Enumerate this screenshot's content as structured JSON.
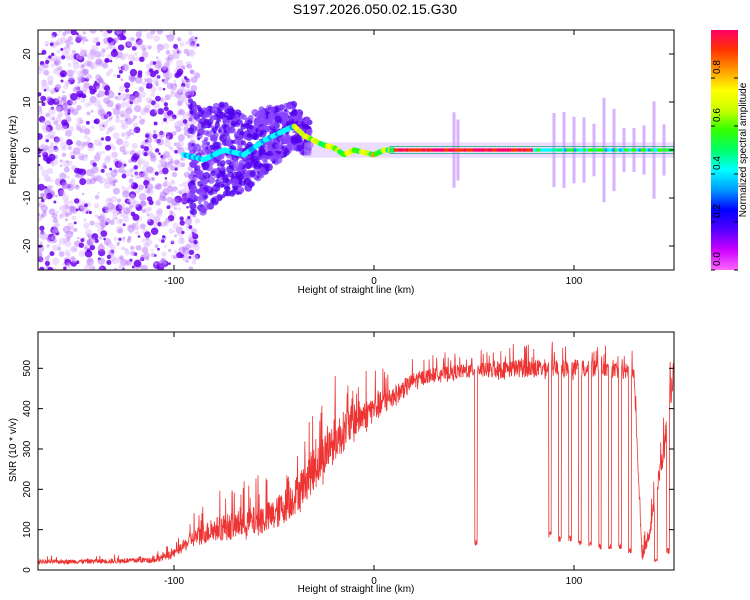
{
  "figure_title": "S197.2026.050.02.15.G30",
  "chart_data": [
    {
      "type": "heatmap",
      "title": "S197.2026.050.02.15.G30",
      "xlabel": "Height of straight line (km)",
      "ylabel": "Frequency (Hz)",
      "xlim": [
        -168,
        150
      ],
      "ylim": [
        -25,
        25
      ],
      "xticks": [
        -100,
        0,
        100
      ],
      "xtick_labels": [
        "-100",
        "0",
        "100"
      ],
      "yticks": [
        -20,
        -10,
        0,
        10,
        20
      ],
      "ytick_labels": [
        "-20",
        "-10",
        "0",
        "10",
        "20"
      ],
      "colorbar": {
        "label": "Normalized spectral amplitude",
        "range": [
          0,
          1
        ],
        "ticks": [
          0.0,
          0.2,
          0.4,
          0.6,
          0.8
        ],
        "tick_labels": [
          "0.0",
          "0.2",
          "0.4",
          "0.6",
          "0.8"
        ],
        "colors": [
          "#ff66ff",
          "#cc00ff",
          "#5500ff",
          "#0000ff",
          "#0099ff",
          "#00ffff",
          "#00ff66",
          "#33ff00",
          "#ccff00",
          "#ffff00",
          "#ff9900",
          "#ff3300",
          "#ff0066"
        ]
      },
      "ridge": {
        "x": [
          -95,
          -85,
          -75,
          -65,
          -55,
          -45,
          -40,
          -35,
          -30,
          -25,
          -20,
          -15,
          -10,
          -5,
          0,
          5,
          10,
          20,
          40,
          60,
          80,
          100,
          120,
          140,
          150
        ],
        "freq": [
          -1,
          -2,
          0,
          -1,
          2,
          4,
          5,
          3,
          2,
          1,
          0.5,
          -1,
          0,
          -0.5,
          -1,
          0,
          0,
          0,
          0,
          0,
          0,
          0,
          0,
          0,
          0
        ]
      },
      "noise_region": {
        "x_start": -168,
        "x_end": -88
      },
      "vertical_streaks_x": [
        40,
        42,
        90,
        95,
        100,
        105,
        110,
        115,
        120,
        125,
        130,
        135,
        140,
        145
      ]
    },
    {
      "type": "line",
      "xlabel": "Height of straight line (km)",
      "ylabel": "SNR (10 * v/v)",
      "xlim": [
        -168,
        150
      ],
      "ylim": [
        0,
        590
      ],
      "xticks": [
        -100,
        0,
        100
      ],
      "xtick_labels": [
        "-100",
        "0",
        "100"
      ],
      "yticks": [
        0,
        100,
        200,
        300,
        400,
        500
      ],
      "ytick_labels": [
        "0",
        "100",
        "200",
        "300",
        "400",
        "500"
      ],
      "series": [
        {
          "name": "SNR",
          "color": "#ee3333",
          "envelope_x": [
            -168,
            -130,
            -110,
            -100,
            -95,
            -90,
            -80,
            -70,
            -60,
            -50,
            -40,
            -30,
            -20,
            -10,
            0,
            10,
            20,
            30,
            40,
            50,
            60,
            70,
            80,
            90,
            100,
            110,
            120,
            130,
            134,
            138,
            145,
            150
          ],
          "envelope_y": [
            20,
            22,
            25,
            40,
            60,
            80,
            100,
            110,
            120,
            135,
            180,
            250,
            320,
            370,
            400,
            430,
            470,
            485,
            490,
            495,
            495,
            500,
            500,
            500,
            500,
            500,
            495,
            490,
            30,
            100,
            300,
            500
          ],
          "noise_amp": [
            10,
            12,
            14,
            18,
            30,
            45,
            60,
            70,
            75,
            80,
            90,
            110,
            110,
            90,
            70,
            55,
            40,
            35,
            35,
            35,
            40,
            45,
            45,
            45,
            45,
            45,
            40,
            40,
            20,
            40,
            60,
            60
          ],
          "dips_x": [
            51,
            88,
            93,
            98,
            103,
            108,
            113,
            118,
            123,
            128,
            141,
            147
          ],
          "dips_y": [
            60,
            80,
            70,
            70,
            60,
            60,
            50,
            50,
            50,
            40,
            20,
            40
          ]
        }
      ]
    }
  ]
}
